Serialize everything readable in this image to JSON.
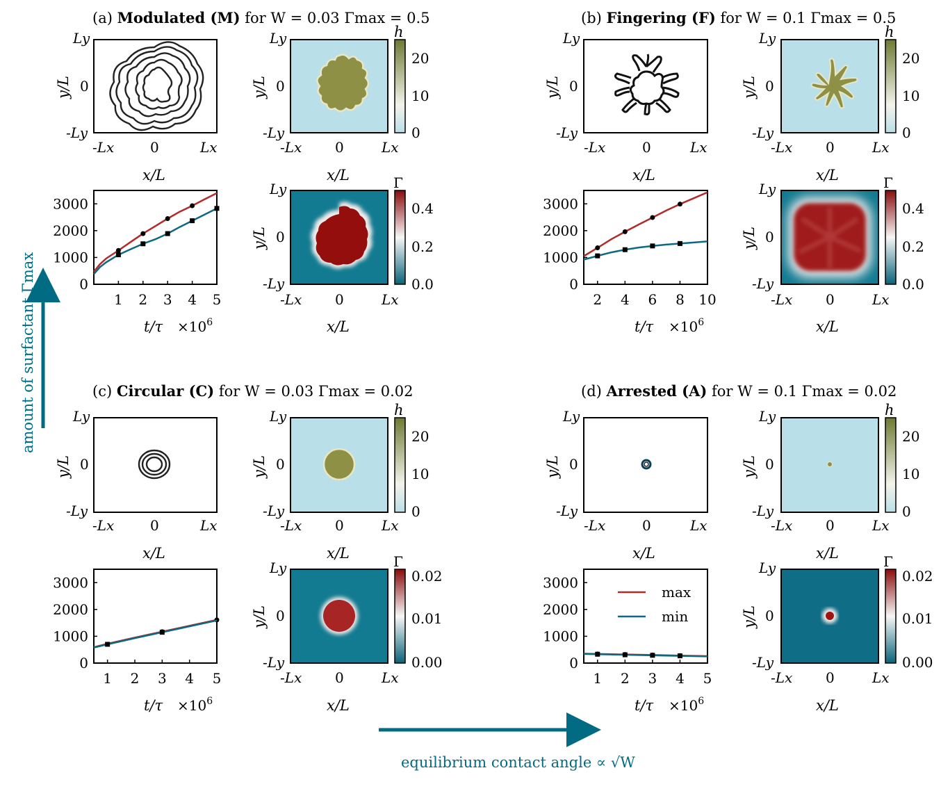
{
  "figure": {
    "colors": {
      "max": "#b22a2a",
      "min": "#0b6a80",
      "teal": "#006b82",
      "film": "#8b8c43",
      "substrate": "#b9dfe8",
      "gamma_high": "#950e0e",
      "gamma_low": "#137b91"
    },
    "arrow_vertical_label": "amount of surfactant Γmax",
    "arrow_horizontal_label": "equilibrium contact angle ∝ √W",
    "axis_labels": {
      "x": "x/L",
      "y": "y/L",
      "time": "t/τ",
      "time_mult": "×10",
      "time_exp": "6"
    },
    "domain_ticks": {
      "x": [
        "-Lx",
        "0",
        "Lx"
      ],
      "y": [
        "Ly",
        "0",
        "-Ly"
      ]
    },
    "colorbar_labels": {
      "h": "h",
      "gamma": "Γ"
    }
  },
  "panels": [
    {
      "id": "a",
      "prefix": "(a) ",
      "bold": "Modulated (M)",
      "suffix": " for W = 0.03 Γmax = 0.5",
      "h_ticks": [
        "20",
        "10",
        "0"
      ],
      "gamma_ticks": [
        "0.4",
        "0.2",
        "0.0"
      ]
    },
    {
      "id": "b",
      "prefix": "(b) ",
      "bold": "Fingering (F)",
      "suffix": " for W = 0.1 Γmax = 0.5",
      "h_ticks": [
        "20",
        "10",
        "0"
      ],
      "gamma_ticks": [
        "0.4",
        "0.2",
        "0.0"
      ]
    },
    {
      "id": "c",
      "prefix": "(c) ",
      "bold": "Circular (C)",
      "suffix": " for W = 0.03 Γmax = 0.02",
      "h_ticks": [
        "20",
        "10",
        "0"
      ],
      "gamma_ticks": [
        "0.02",
        "0.01",
        "0.00"
      ]
    },
    {
      "id": "d",
      "prefix": "(d) ",
      "bold": "Arrested (A)",
      "suffix": " for W = 0.1 Γmax = 0.02",
      "h_ticks": [
        "20",
        "10",
        "0"
      ],
      "gamma_ticks": [
        "0.02",
        "0.01",
        "0.00"
      ]
    }
  ],
  "chart_data": [
    {
      "panel": "a",
      "type": "line",
      "xlabel": "t/τ ×10^6",
      "ylabel": "",
      "xlim": [
        0,
        5
      ],
      "ylim": [
        0,
        3500
      ],
      "xticks": [
        1,
        2,
        3,
        4,
        5
      ],
      "yticks": [
        0,
        1000,
        2000,
        3000
      ],
      "series": [
        {
          "name": "max",
          "x": [
            0,
            0.25,
            0.5,
            1,
            1.5,
            2,
            2.5,
            3,
            3.5,
            4,
            4.5,
            5
          ],
          "y": [
            470,
            750,
            960,
            1260,
            1580,
            1890,
            2170,
            2450,
            2710,
            2930,
            3170,
            3400
          ],
          "markers_x": [
            1,
            2,
            3,
            4
          ],
          "markers_y": [
            1260,
            1890,
            2450,
            2930
          ]
        },
        {
          "name": "min",
          "x": [
            0,
            0.25,
            0.5,
            1,
            1.5,
            2,
            2.5,
            3,
            3.5,
            4,
            4.5,
            5
          ],
          "y": [
            380,
            640,
            820,
            1100,
            1310,
            1510,
            1680,
            1890,
            2140,
            2370,
            2600,
            2830
          ],
          "markers_x": [
            1,
            2,
            3,
            4,
            5
          ],
          "markers_y": [
            1100,
            1510,
            1890,
            2370,
            2830
          ]
        }
      ]
    },
    {
      "panel": "b",
      "type": "line",
      "xlabel": "t/τ ×10^6",
      "ylabel": "",
      "xlim": [
        1,
        10
      ],
      "ylim": [
        0,
        3500
      ],
      "xticks": [
        2,
        4,
        6,
        8,
        10
      ],
      "yticks": [
        0,
        1000,
        2000,
        3000
      ],
      "series": [
        {
          "name": "max",
          "x": [
            1,
            2,
            3,
            4,
            5,
            6,
            7,
            8,
            9,
            10
          ],
          "y": [
            1050,
            1360,
            1680,
            1960,
            2230,
            2490,
            2750,
            2990,
            3210,
            3430
          ],
          "markers_x": [
            2,
            4,
            6,
            8
          ],
          "markers_y": [
            1360,
            1960,
            2490,
            2990
          ]
        },
        {
          "name": "min",
          "x": [
            1,
            2,
            3,
            4,
            5,
            6,
            7,
            8,
            9,
            10
          ],
          "y": [
            920,
            1060,
            1190,
            1290,
            1370,
            1430,
            1480,
            1520,
            1560,
            1600
          ],
          "markers_x": [
            2,
            4,
            6,
            8
          ],
          "markers_y": [
            1060,
            1290,
            1430,
            1520
          ]
        }
      ]
    },
    {
      "panel": "c",
      "type": "line",
      "xlabel": "t/τ ×10^6",
      "ylabel": "",
      "xlim": [
        0.5,
        5
      ],
      "ylim": [
        0,
        3500
      ],
      "xticks": [
        1,
        2,
        3,
        4,
        5
      ],
      "yticks": [
        0,
        1000,
        2000,
        3000
      ],
      "series": [
        {
          "name": "max",
          "x": [
            0.5,
            1,
            2,
            3,
            4,
            5
          ],
          "y": [
            590,
            720,
            950,
            1170,
            1390,
            1610
          ],
          "markers_x": [
            3,
            5
          ],
          "markers_y": [
            1170,
            1610
          ]
        },
        {
          "name": "min",
          "x": [
            0.5,
            1,
            2,
            3,
            4,
            5
          ],
          "y": [
            580,
            700,
            930,
            1150,
            1370,
            1590
          ],
          "markers_x": [
            1,
            3
          ],
          "markers_y": [
            700,
            1150
          ]
        }
      ]
    },
    {
      "panel": "d",
      "type": "line",
      "xlabel": "t/τ ×10^6",
      "ylabel": "",
      "xlim": [
        0.5,
        5
      ],
      "ylim": [
        0,
        3500
      ],
      "legend": "top-right",
      "xticks": [
        1,
        2,
        3,
        4,
        5
      ],
      "yticks": [
        0,
        1000,
        2000,
        3000
      ],
      "series": [
        {
          "name": "max",
          "x": [
            0.5,
            1,
            2,
            3,
            4,
            5
          ],
          "y": [
            350,
            340,
            320,
            300,
            280,
            260
          ],
          "markers_x": [
            1,
            2,
            3,
            4
          ],
          "markers_y": [
            340,
            320,
            300,
            280
          ]
        },
        {
          "name": "min",
          "x": [
            0.5,
            1,
            2,
            3,
            4,
            5
          ],
          "y": [
            340,
            330,
            310,
            290,
            270,
            250
          ],
          "markers_x": [
            1,
            2,
            3,
            4
          ],
          "markers_y": [
            330,
            310,
            290,
            270
          ]
        }
      ]
    }
  ]
}
